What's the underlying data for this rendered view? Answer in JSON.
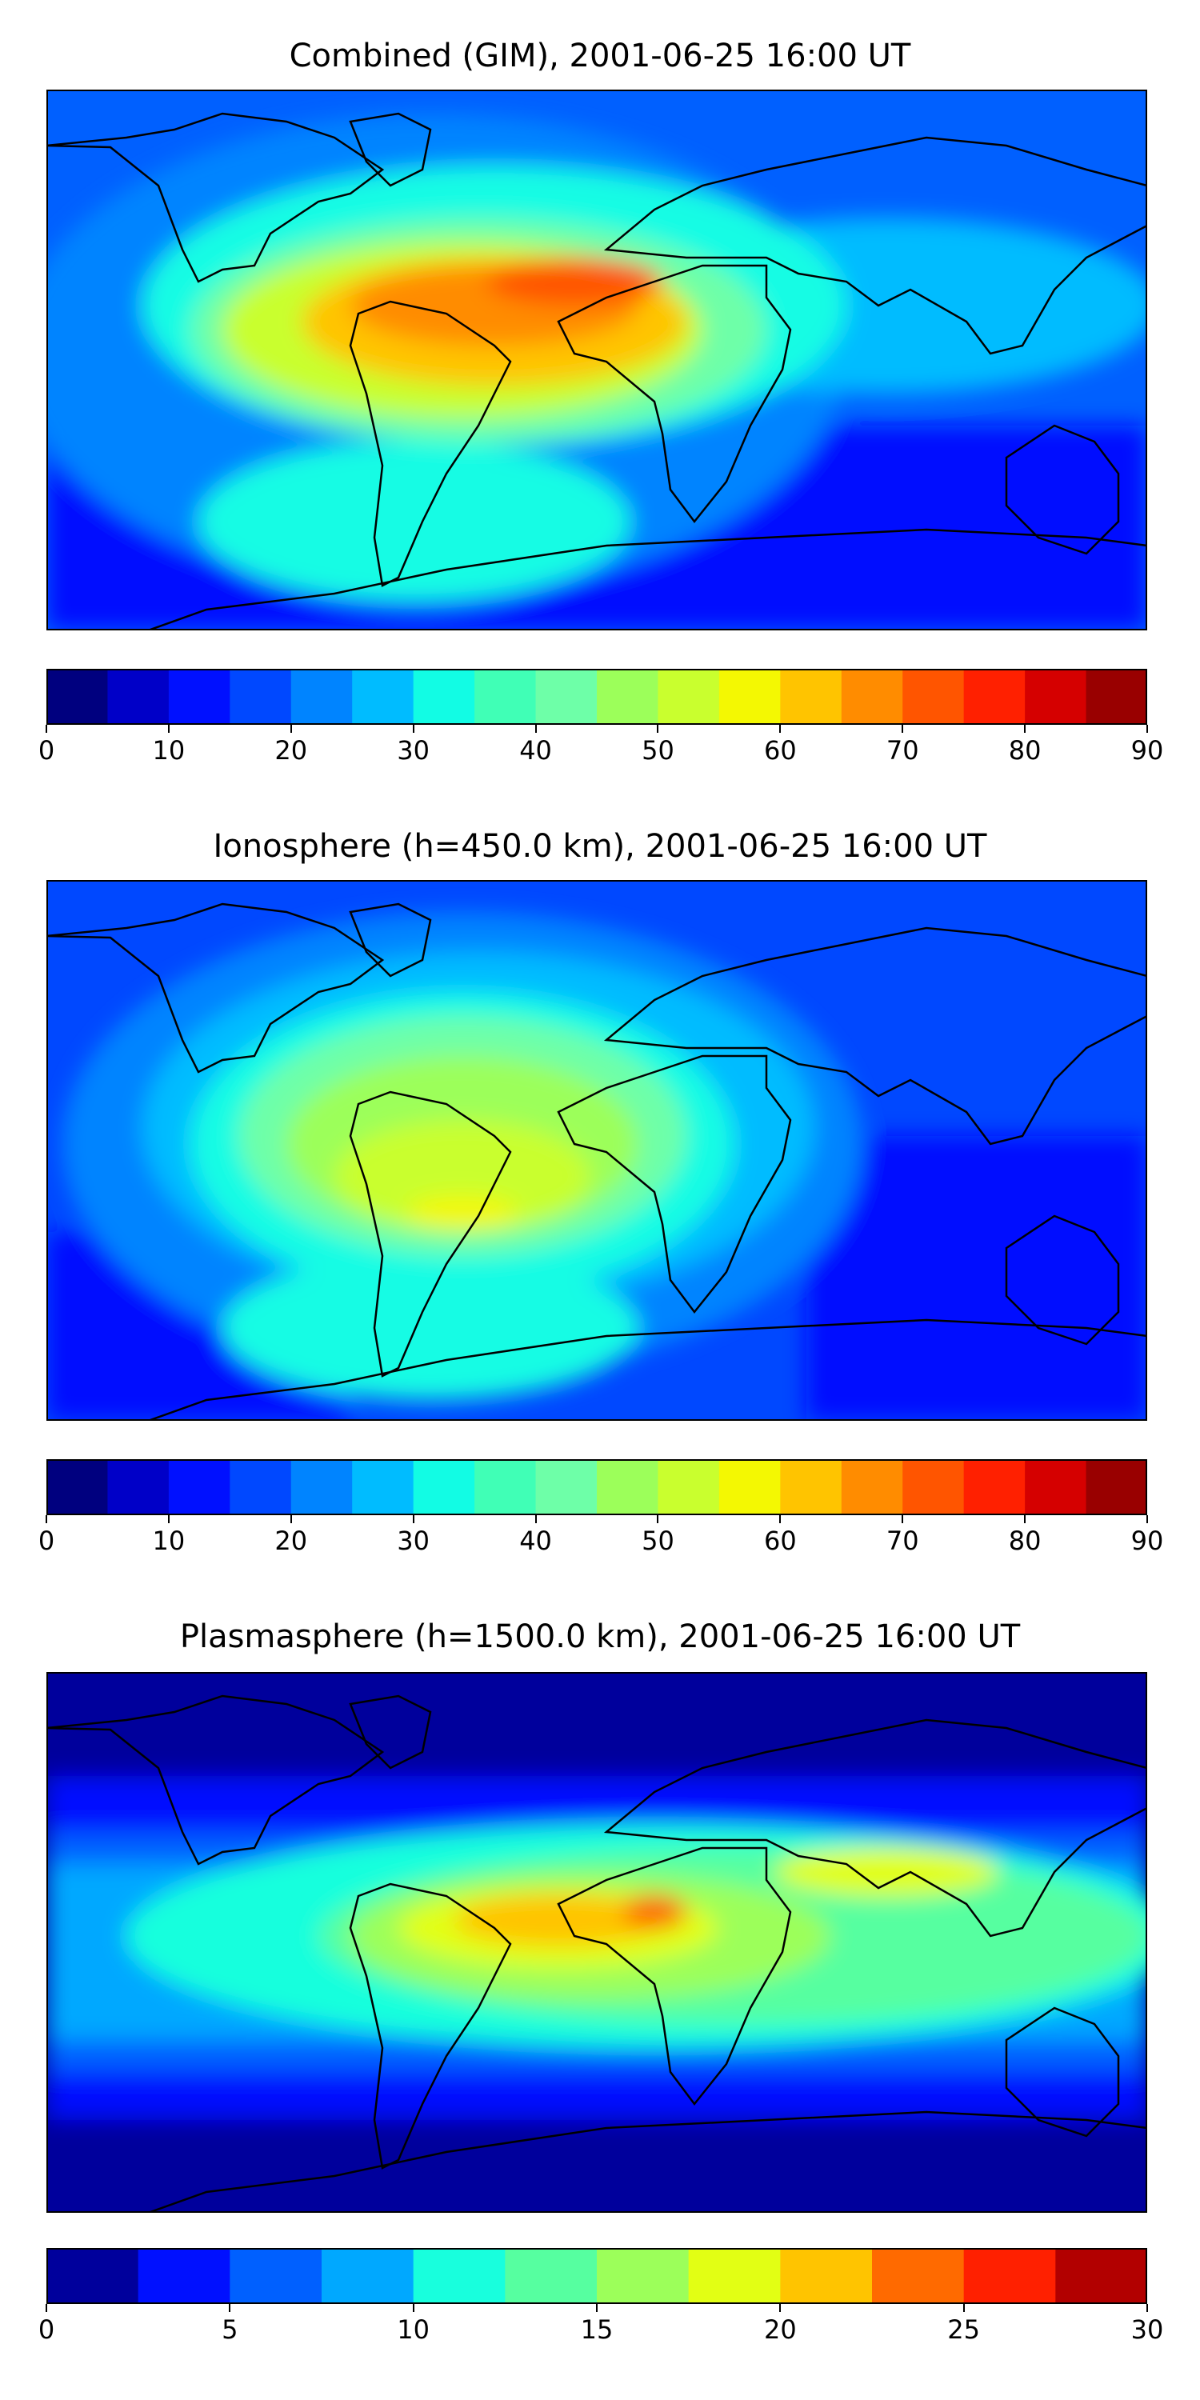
{
  "panels": [
    {
      "title": "Combined (GIM), 2001-06-25 16:00 UT",
      "colorbar": {
        "colors": [
          "#00007f",
          "#0000c8",
          "#0010ff",
          "#0048ff",
          "#0084ff",
          "#00bcff",
          "#12fce4",
          "#40ffb6",
          "#6effa8",
          "#9cff5a",
          "#c9ff2e",
          "#f4f802",
          "#ffc400",
          "#ff8c00",
          "#ff5500",
          "#ff2000",
          "#d50000",
          "#990000"
        ],
        "ticks": [
          "0",
          "10",
          "20",
          "30",
          "40",
          "50",
          "60",
          "70",
          "80",
          "90"
        ]
      }
    },
    {
      "title": "Ionosphere  (h=450.0 km), 2001-06-25 16:00 UT",
      "colorbar": {
        "colors": [
          "#00007f",
          "#0000c8",
          "#0010ff",
          "#0048ff",
          "#0084ff",
          "#00bcff",
          "#12fce4",
          "#40ffb6",
          "#6effa8",
          "#9cff5a",
          "#c9ff2e",
          "#f4f802",
          "#ffc400",
          "#ff8c00",
          "#ff5500",
          "#ff2000",
          "#d50000",
          "#990000"
        ],
        "ticks": [
          "0",
          "10",
          "20",
          "30",
          "40",
          "50",
          "60",
          "70",
          "80",
          "90"
        ]
      }
    },
    {
      "title": "Plasmasphere (h=1500.0 km), 2001-06-25 16:00 UT",
      "colorbar": {
        "colors": [
          "#00009c",
          "#0010ff",
          "#0060ff",
          "#00a8ff",
          "#18ffdd",
          "#56ffa0",
          "#9cff5a",
          "#e2ff14",
          "#ffc400",
          "#ff6a00",
          "#ff2000",
          "#b20000"
        ],
        "ticks": [
          "0",
          "5",
          "10",
          "15",
          "20",
          "25",
          "30"
        ]
      }
    }
  ]
}
